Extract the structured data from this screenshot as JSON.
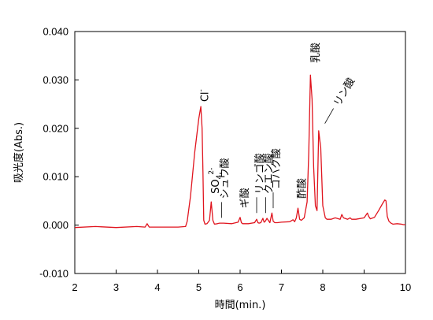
{
  "chart_data": {
    "type": "line",
    "xlabel": "時間(min.)",
    "ylabel": "吸光度(Abs.)",
    "xlim": [
      2,
      10
    ],
    "ylim": [
      -0.01,
      0.04
    ],
    "xticks": [
      "2",
      "3",
      "4",
      "5",
      "6",
      "7",
      "8",
      "9",
      "10"
    ],
    "yticks": [
      "-0.010",
      "0.000",
      "0.010",
      "0.020",
      "0.030",
      "0.040"
    ],
    "grid": false,
    "color": "#e0141e",
    "series": [
      {
        "x": [
          2.0,
          2.5,
          3.0,
          3.5,
          3.7,
          3.75,
          3.8,
          4.0,
          4.5,
          4.68,
          4.72,
          4.8,
          4.9,
          5.0,
          5.05,
          5.08,
          5.1,
          5.12,
          5.15,
          5.2,
          5.26,
          5.3,
          5.34,
          5.38,
          5.45,
          5.5,
          5.6,
          5.8,
          5.95,
          6.0,
          6.03,
          6.06,
          6.1,
          6.2,
          6.35,
          6.4,
          6.43,
          6.46,
          6.5,
          6.55,
          6.58,
          6.61,
          6.65,
          6.72,
          6.77,
          6.8,
          6.84,
          6.9,
          7.0,
          7.2,
          7.28,
          7.32,
          7.36,
          7.4,
          7.44,
          7.48,
          7.55,
          7.62,
          7.66,
          7.7,
          7.74,
          7.78,
          7.82,
          7.86,
          7.9,
          7.95,
          8.0,
          8.06,
          8.1,
          8.2,
          8.3,
          8.42,
          8.46,
          8.5,
          8.6,
          8.66,
          8.7,
          8.8,
          9.0,
          9.08,
          9.11,
          9.15,
          9.25,
          9.35,
          9.45,
          9.5,
          9.53,
          9.56,
          9.6,
          9.65,
          9.7,
          9.8,
          9.9,
          9.95,
          10.0
        ],
        "y": [
          -0.0005,
          -0.0003,
          -0.0005,
          -0.0003,
          -0.0004,
          0.0003,
          -0.0004,
          -0.0004,
          -0.0004,
          -0.0003,
          0.0008,
          0.006,
          0.015,
          0.022,
          0.0245,
          0.02,
          0.011,
          0.001,
          0.0002,
          0.0003,
          0.001,
          0.0048,
          0.001,
          0.0002,
          0.0003,
          0.0004,
          0.0004,
          0.0003,
          0.0006,
          0.0016,
          0.0005,
          0.0003,
          0.0003,
          0.0003,
          0.0005,
          0.0012,
          0.0005,
          0.0004,
          0.0005,
          0.0014,
          0.0006,
          0.0008,
          0.0014,
          0.0005,
          0.0025,
          0.0008,
          0.0005,
          0.0005,
          0.0006,
          0.0007,
          0.0011,
          0.0007,
          0.0015,
          0.0035,
          0.0012,
          0.001,
          0.0015,
          0.0048,
          0.015,
          0.031,
          0.026,
          0.012,
          0.004,
          0.003,
          0.0195,
          0.016,
          0.004,
          0.0015,
          0.0012,
          0.0012,
          0.0015,
          0.0012,
          0.0022,
          0.0015,
          0.0012,
          0.0015,
          0.0012,
          0.0012,
          0.0015,
          0.0025,
          0.0018,
          0.0013,
          0.0016,
          0.003,
          0.0045,
          0.0052,
          0.005,
          0.0018,
          0.0008,
          0.0004,
          0.0002,
          0.0003,
          0.0002,
          0.0001,
          0.0001
        ]
      }
    ],
    "annotations": [
      {
        "text": "Cl",
        "sup": "-",
        "x": 5.08,
        "y": 0.0245,
        "rot": -90
      },
      {
        "text": "SO",
        "sub": "4",
        "sup": "2-",
        "x": 5.33,
        "y": 0.0055,
        "rot": -90
      },
      {
        "text": "シュウ酸",
        "x": 5.55,
        "y": 0.0015,
        "rot": -90,
        "leader": true
      },
      {
        "text": "ギ酸",
        "x": 6.04,
        "y": 0.0025,
        "rot": -90
      },
      {
        "text": "リンゴ酸",
        "x": 6.4,
        "y": 0.0025,
        "rot": -90,
        "leader": true
      },
      {
        "text": "クエン酸",
        "x": 6.62,
        "y": 0.0025,
        "rot": -90,
        "leader": true
      },
      {
        "text": "コハク酸",
        "x": 6.8,
        "y": 0.0035,
        "rot": -90,
        "leader": true
      },
      {
        "text": "酢酸",
        "x": 7.42,
        "y": 0.0045,
        "rot": -90
      },
      {
        "text": "乳酸",
        "x": 7.75,
        "y": 0.0325,
        "rot": -90
      },
      {
        "text": "リン酸",
        "x": 8.05,
        "y": 0.021,
        "rot": -60,
        "leader": true
      }
    ]
  }
}
